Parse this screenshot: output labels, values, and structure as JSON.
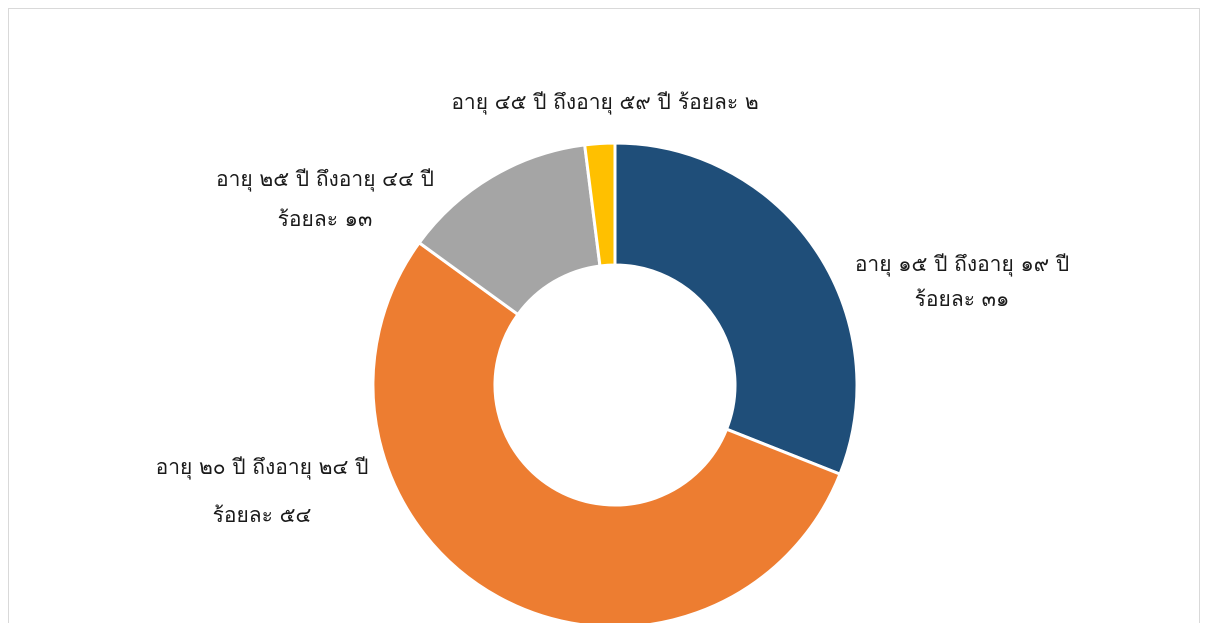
{
  "chart_data": {
    "type": "donut",
    "categories": [
      "อายุ ๑๕ ปี ถึงอายุ ๑๙ ปี",
      "อายุ ๒๐ ปี ถึงอายุ ๒๔ ปี",
      "อายุ ๒๕ ปี ถึงอายุ ๔๔ ปี",
      "อายุ ๔๕ ปี ถึงอายุ ๕๙ ปี"
    ],
    "values": [
      31,
      54,
      13,
      2
    ],
    "value_labels": [
      "ร้อยละ ๓๑",
      "ร้อยละ ๕๔",
      "ร้อยละ ๑๓",
      "ร้อยละ ๒"
    ],
    "colors": [
      "#1f4e79",
      "#ed7d31",
      "#a5a5a5",
      "#ffc000"
    ]
  }
}
